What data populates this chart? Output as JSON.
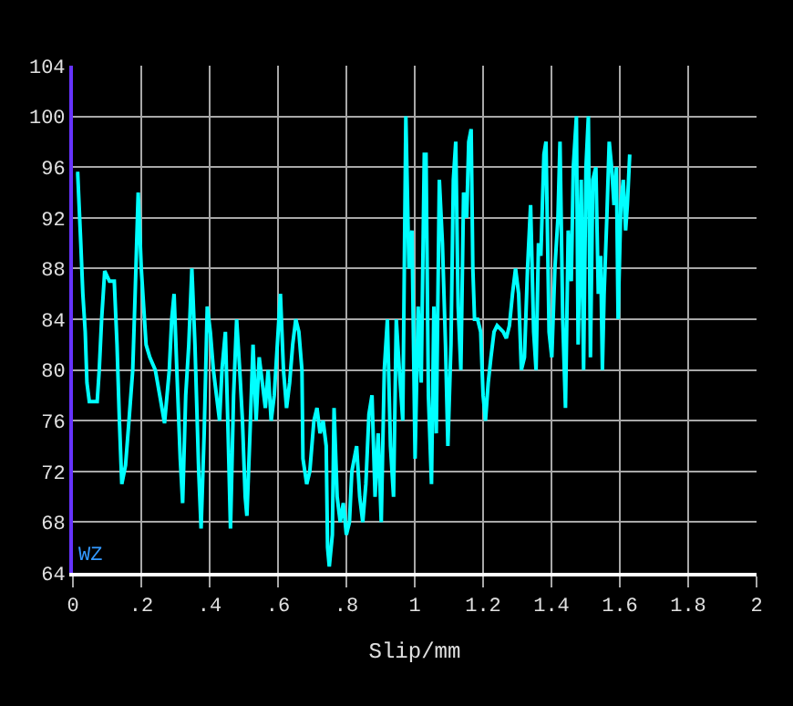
{
  "chart_data": {
    "type": "line",
    "xlabel": "Slip/mm",
    "annotations": [
      "WZ"
    ],
    "xlim": [
      0,
      2
    ],
    "ylim": [
      64,
      104
    ],
    "xticks": [
      0,
      {
        "value": 0.2,
        "label": ".2"
      },
      {
        "value": 0.4,
        "label": ".4"
      },
      {
        "value": 0.6,
        "label": ".6"
      },
      {
        "value": 0.8,
        "label": ".8"
      },
      1,
      1.2,
      1.4,
      1.6,
      1.8,
      2
    ],
    "yticks": [
      64,
      68,
      72,
      76,
      80,
      84,
      88,
      92,
      96,
      100,
      104
    ],
    "grid": true,
    "marker": "none",
    "line_style": "solid",
    "series": [
      {
        "color": "#00ffff",
        "x": [
          0.009,
          0.014,
          0.023,
          0.029,
          0.036,
          0.041,
          0.048,
          0.063,
          0.071,
          0.077,
          0.084,
          0.093,
          0.107,
          0.121,
          0.129,
          0.136,
          0.143,
          0.154,
          0.164,
          0.175,
          0.182,
          0.191,
          0.2,
          0.207,
          0.214,
          0.225,
          0.241,
          0.254,
          0.268,
          0.282,
          0.289,
          0.296,
          0.304,
          0.314,
          0.321,
          0.33,
          0.339,
          0.348,
          0.357,
          0.368,
          0.375,
          0.384,
          0.393,
          0.402,
          0.411,
          0.42,
          0.429,
          0.436,
          0.446,
          0.454,
          0.461,
          0.47,
          0.479,
          0.488,
          0.496,
          0.504,
          0.509,
          0.518,
          0.527,
          0.536,
          0.545,
          0.554,
          0.563,
          0.571,
          0.58,
          0.589,
          0.598,
          0.607,
          0.616,
          0.625,
          0.634,
          0.643,
          0.652,
          0.661,
          0.67,
          0.673,
          0.684,
          0.693,
          0.705,
          0.714,
          0.723,
          0.732,
          0.741,
          0.745,
          0.75,
          0.759,
          0.764,
          0.773,
          0.782,
          0.791,
          0.8,
          0.809,
          0.816,
          0.83,
          0.839,
          0.848,
          0.857,
          0.866,
          0.875,
          0.884,
          0.893,
          0.902,
          0.911,
          0.92,
          0.929,
          0.938,
          0.946,
          0.955,
          0.965,
          0.974,
          0.983,
          0.992,
          1.001,
          1.01,
          1.019,
          1.028,
          1.033,
          1.04,
          1.049,
          1.056,
          1.063,
          1.072,
          1.081,
          1.09,
          1.097,
          1.106,
          1.113,
          1.12,
          1.127,
          1.135,
          1.143,
          1.152,
          1.158,
          1.165,
          1.17,
          1.175,
          1.184,
          1.193,
          1.2,
          1.207,
          1.215,
          1.223,
          1.232,
          1.241,
          1.259,
          1.268,
          1.277,
          1.286,
          1.295,
          1.304,
          1.312,
          1.321,
          1.33,
          1.339,
          1.348,
          1.355,
          1.362,
          1.369,
          1.378,
          1.384,
          1.393,
          1.401,
          1.41,
          1.419,
          1.425,
          1.433,
          1.441,
          1.449,
          1.458,
          1.464,
          1.473,
          1.478,
          1.487,
          1.494,
          1.501,
          1.508,
          1.514,
          1.521,
          1.53,
          1.537,
          1.544,
          1.549,
          1.554,
          1.562,
          1.569,
          1.576,
          1.583,
          1.59,
          1.595,
          1.603,
          1.61,
          1.617,
          1.622,
          1.629
        ],
        "values": [
          95.5,
          95.5,
          90,
          86,
          83,
          79,
          77.5,
          77.5,
          77.5,
          80,
          84,
          87.8,
          87,
          87,
          82,
          76,
          71,
          72.5,
          76,
          80,
          86,
          94,
          88,
          85,
          82,
          81,
          80,
          78,
          75.8,
          80,
          84,
          86,
          80,
          73,
          69.5,
          78,
          82,
          88,
          82,
          72,
          67.5,
          75,
          85,
          83,
          80,
          78,
          76,
          80,
          83,
          75,
          67.5,
          78,
          84,
          80,
          76,
          70,
          68.5,
          75,
          82,
          76,
          81,
          79,
          77,
          80,
          76,
          78,
          82,
          86,
          80,
          77,
          79,
          82,
          84,
          83,
          80,
          73,
          71,
          72,
          76,
          77,
          75,
          76,
          74,
          66,
          64.5,
          67,
          77,
          70,
          68,
          69.5,
          67,
          68,
          72,
          74,
          70,
          68,
          71,
          76.5,
          78,
          70,
          75,
          68,
          80,
          84,
          74,
          70,
          84,
          80,
          76,
          100,
          88,
          91,
          73,
          85,
          79,
          97,
          97,
          78,
          71,
          85,
          75,
          95,
          90,
          82,
          74,
          82,
          95,
          98,
          85,
          80,
          94,
          92,
          98,
          99,
          88,
          84,
          84,
          83,
          78,
          76,
          79,
          81,
          83,
          83.5,
          83,
          82.5,
          83.5,
          86,
          88,
          86,
          80,
          81,
          88,
          93,
          83,
          80,
          90,
          89,
          97,
          98,
          83,
          81,
          88,
          92,
          98,
          84,
          77,
          91,
          87,
          96,
          100,
          82,
          95,
          80,
          96,
          100,
          81,
          95,
          96,
          86,
          89,
          80,
          86,
          92,
          98,
          96,
          93,
          96,
          84,
          93,
          95,
          91,
          93,
          97
        ]
      }
    ]
  }
}
